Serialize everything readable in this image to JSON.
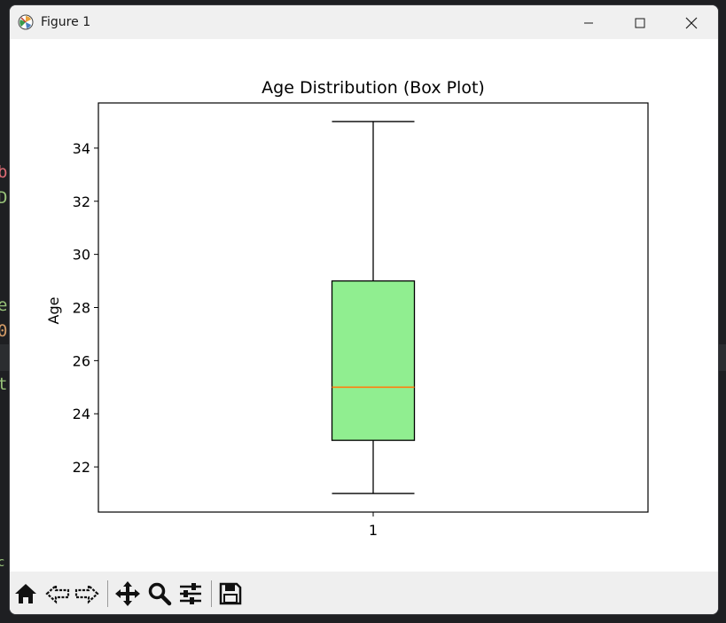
{
  "window": {
    "title": "Figure 1"
  },
  "toolbar": {
    "buttons": [
      "home-icon",
      "back-arrow-icon",
      "forward-arrow-icon",
      "pan-icon",
      "zoom-icon",
      "configure-subplots-icon",
      "save-icon"
    ]
  },
  "background_fragments": [
    "b",
    "D",
    "e",
    "0",
    "t",
    "c"
  ],
  "colors": {
    "box_fill": "#90ee90",
    "median": "#ff7f0e",
    "titlebar": "#f0f0f0",
    "toolbar": "#efefef"
  },
  "chart_data": {
    "type": "box",
    "title": "Age Distribution (Box Plot)",
    "xlabel": "",
    "ylabel": "Age",
    "categories": [
      "1"
    ],
    "boxes": [
      {
        "category": "1",
        "whisker_low": 21,
        "q1": 23,
        "median": 25,
        "q3": 29,
        "whisker_high": 35
      }
    ],
    "yticks": [
      22,
      24,
      26,
      28,
      30,
      32,
      34
    ],
    "ylim": [
      20.3,
      35.7
    ],
    "grid": false,
    "legend": "none"
  }
}
